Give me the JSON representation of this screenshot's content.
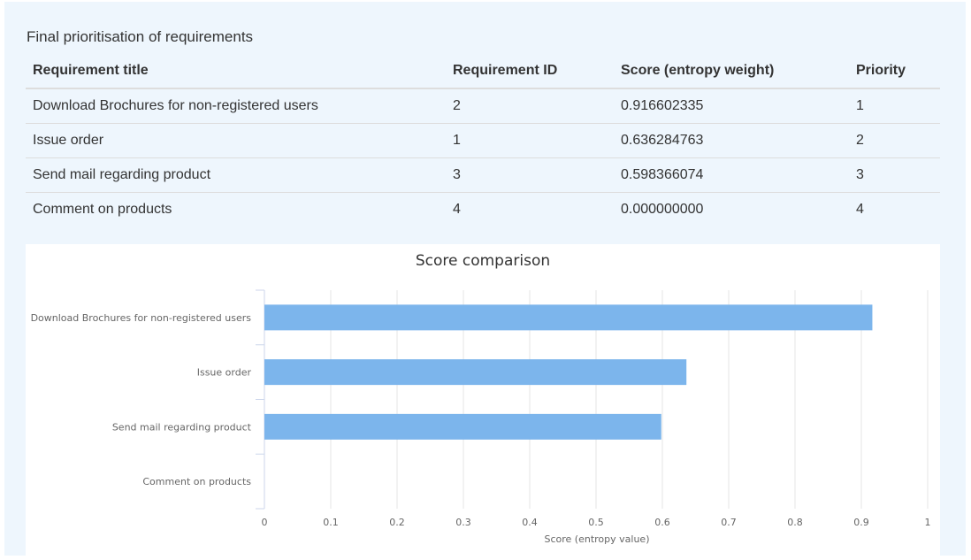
{
  "section": {
    "title": "Final prioritisation of requirements"
  },
  "table": {
    "headers": [
      "Requirement title",
      "Requirement ID",
      "Score (entropy weight)",
      "Priority"
    ],
    "rows": [
      [
        "Download Brochures for non-registered users",
        "2",
        "0.916602335",
        "1"
      ],
      [
        "Issue order",
        "1",
        "0.636284763",
        "2"
      ],
      [
        "Send mail regarding product",
        "3",
        "0.598366074",
        "3"
      ],
      [
        "Comment on products",
        "4",
        "0.000000000",
        "4"
      ]
    ]
  },
  "chart_data": {
    "type": "bar",
    "orientation": "horizontal",
    "title": "Score comparison",
    "xlabel": "Score (entropy value)",
    "ylabel": "",
    "categories": [
      "Download Brochures for non-registered users",
      "Issue order",
      "Send mail regarding product",
      "Comment on products"
    ],
    "values": [
      0.916602335,
      0.636284763,
      0.598366074,
      0.0
    ],
    "xlim": [
      0,
      1
    ],
    "xticks": [
      "0",
      "0.1",
      "0.2",
      "0.3",
      "0.4",
      "0.5",
      "0.6",
      "0.7",
      "0.8",
      "0.9",
      "1"
    ],
    "grid": true,
    "bar_color": "#7cb5ec",
    "legend": "none"
  }
}
